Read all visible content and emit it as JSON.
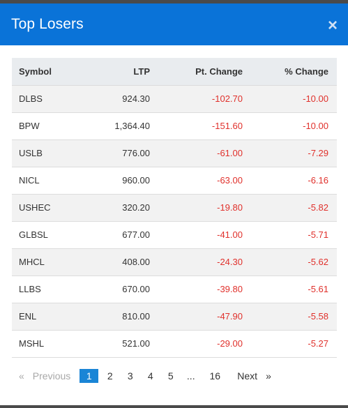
{
  "modal": {
    "title": "Top Losers",
    "close_symbol": "×"
  },
  "table": {
    "headers": {
      "symbol": "Symbol",
      "ltp": "LTP",
      "pt_change": "Pt. Change",
      "pct_change": "% Change"
    },
    "rows": [
      {
        "symbol": "DLBS",
        "ltp": "924.30",
        "pt": "-102.70",
        "pct": "-10.00"
      },
      {
        "symbol": "BPW",
        "ltp": "1,364.40",
        "pt": "-151.60",
        "pct": "-10.00"
      },
      {
        "symbol": "USLB",
        "ltp": "776.00",
        "pt": "-61.00",
        "pct": "-7.29"
      },
      {
        "symbol": "NICL",
        "ltp": "960.00",
        "pt": "-63.00",
        "pct": "-6.16"
      },
      {
        "symbol": "USHEC",
        "ltp": "320.20",
        "pt": "-19.80",
        "pct": "-5.82"
      },
      {
        "symbol": "GLBSL",
        "ltp": "677.00",
        "pt": "-41.00",
        "pct": "-5.71"
      },
      {
        "symbol": "MHCL",
        "ltp": "408.00",
        "pt": "-24.30",
        "pct": "-5.62"
      },
      {
        "symbol": "LLBS",
        "ltp": "670.00",
        "pt": "-39.80",
        "pct": "-5.61"
      },
      {
        "symbol": "ENL",
        "ltp": "810.00",
        "pt": "-47.90",
        "pct": "-5.58"
      },
      {
        "symbol": "MSHL",
        "ltp": "521.00",
        "pt": "-29.00",
        "pct": "-5.27"
      }
    ]
  },
  "pagination": {
    "prev_arrow": "«",
    "prev_label": "Previous",
    "pages": [
      "1",
      "2",
      "3",
      "4",
      "5"
    ],
    "ellipsis": "...",
    "last_page": "16",
    "next_label": "Next",
    "next_arrow": "»",
    "current": "1"
  },
  "colors": {
    "header_bg": "#0a73d8",
    "negative": "#e0302b",
    "active_page": "#1a85d6"
  }
}
